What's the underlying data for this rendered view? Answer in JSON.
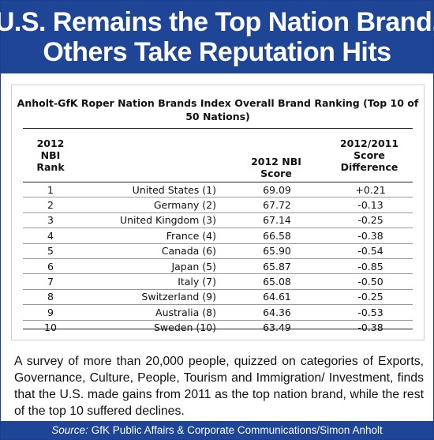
{
  "header": {
    "line1": "U.S. Remains the Top Nation Brand,",
    "line2": "Others Take Reputation Hits"
  },
  "table": {
    "title_line1": "Anholt-GfK Roper Nation Brands Index Overall Brand Ranking (Top 10 of",
    "title_line2": "50 Nations)",
    "col_rank": [
      "2012",
      "NBI",
      "Rank"
    ],
    "col_score": [
      "2012 NBI",
      "Score"
    ],
    "col_diff": [
      "2012/2011",
      "Score",
      "Difference"
    ],
    "rows": [
      {
        "rank": "1",
        "name": "United States (1)",
        "score": "69.09",
        "diff": "+0.21"
      },
      {
        "rank": "2",
        "name": "Germany (2)",
        "score": "67.72",
        "diff": "-0.13"
      },
      {
        "rank": "3",
        "name": "United Kingdom (3)",
        "score": "67.14",
        "diff": "-0.25"
      },
      {
        "rank": "4",
        "name": "France (4)",
        "score": "66.58",
        "diff": "-0.38"
      },
      {
        "rank": "5",
        "name": "Canada (6)",
        "score": "65.90",
        "diff": "-0.54"
      },
      {
        "rank": "6",
        "name": "Japan (5)",
        "score": "65.87",
        "diff": "-0.85"
      },
      {
        "rank": "7",
        "name": "Italy (7)",
        "score": "65.08",
        "diff": "-0.50"
      },
      {
        "rank": "8",
        "name": "Switzerland (9)",
        "score": "64.61",
        "diff": "-0.25"
      },
      {
        "rank": "9",
        "name": "Australia (8)",
        "score": "64.36",
        "diff": "-0.53"
      },
      {
        "rank": "10",
        "name": "Sweden (10)",
        "score": "63.49",
        "diff": "-0.38"
      }
    ]
  },
  "caption": "A survey of more than 20,000 people, quizzed on categories of Exports, Governance, Culture, People, Tourism and Immigration/ Investment, finds that the U.S. made gains from 2011 as the top nation brand, while the rest of the top 10 suffered declines.",
  "source": {
    "label": "Source:",
    "text": "GfK Public Affairs & Corporate Communications/Simon Anholt"
  },
  "colors": {
    "brand_blue": "#1f4596",
    "panel_border": "#c9cfdc"
  }
}
